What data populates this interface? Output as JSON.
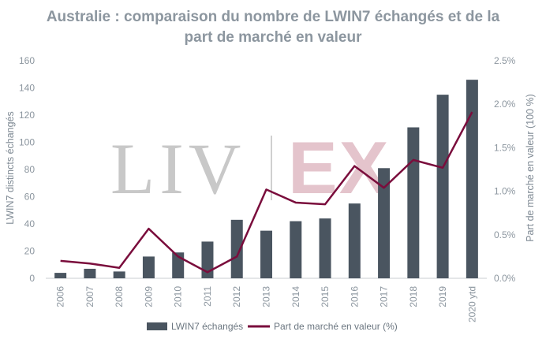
{
  "chart_data": {
    "type": "bar",
    "title_lines": [
      "Australie : comparaison du nombre de LWIN7 échangés et de la",
      "part de marché en valeur"
    ],
    "categories": [
      "2006",
      "2007",
      "2008",
      "2009",
      "2010",
      "2011",
      "2012",
      "2013",
      "2014",
      "2015",
      "2016",
      "2017",
      "2018",
      "2019",
      "2020 ytd"
    ],
    "series": [
      {
        "name": "LWIN7 échangés",
        "type": "bar",
        "axis": "left",
        "color": "#4a5560",
        "values": [
          4,
          7,
          5,
          16,
          19,
          27,
          43,
          35,
          42,
          44,
          55,
          81,
          111,
          135,
          146
        ]
      },
      {
        "name": "Part de marché en valeur (%)",
        "type": "line",
        "axis": "right",
        "color": "#7a0d3c",
        "values": [
          0.2,
          0.17,
          0.12,
          0.57,
          0.25,
          0.07,
          0.25,
          1.02,
          0.87,
          0.85,
          1.29,
          1.04,
          1.36,
          1.27,
          1.91
        ]
      }
    ],
    "ylabel": "LWIN7 distincts échangés",
    "y2label": "Part de marché en valeur (100 %)",
    "ylim": [
      0,
      160
    ],
    "yticks": [
      "0",
      "20",
      "40",
      "60",
      "80",
      "100",
      "120",
      "140",
      "160"
    ],
    "y2lim": [
      0,
      2.5
    ],
    "y2ticks": [
      "0.0%",
      "0.5%",
      "1.0%",
      "1.5%",
      "2.0%",
      "2.5%"
    ],
    "grid": false,
    "legend": "bottom",
    "watermark": {
      "left": "LIV",
      "right": "EX"
    }
  }
}
